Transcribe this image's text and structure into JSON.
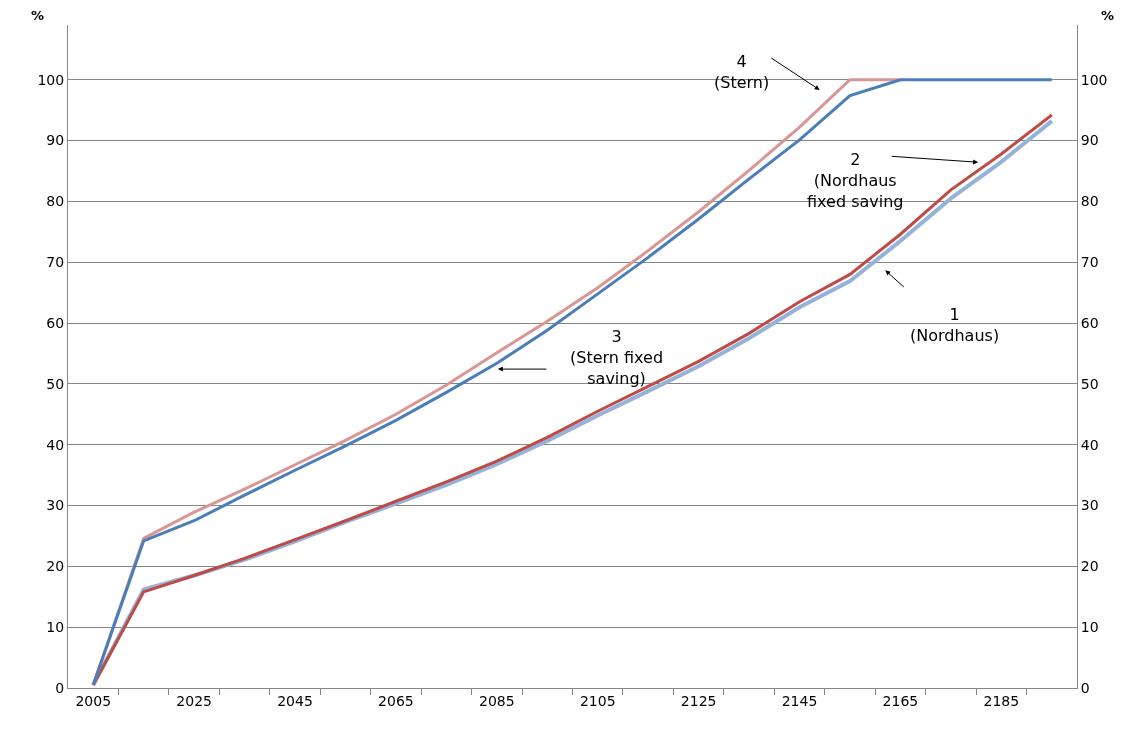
{
  "chart_data": {
    "type": "line",
    "categories": [
      "2005",
      null,
      "2025",
      null,
      "2045",
      null,
      "2065",
      null,
      "2085",
      null,
      "2105",
      null,
      "2125",
      null,
      "2145",
      null,
      "2165",
      null,
      "2185",
      null
    ],
    "series": [
      {
        "color": "#95b3d7",
        "values": [
          0.5,
          16.2,
          18.5,
          21.1,
          24.1,
          27.3,
          30.3,
          33.4,
          36.8,
          40.6,
          44.8,
          48.8,
          52.9,
          57.5,
          62.6,
          66.9,
          73.5,
          80.5,
          86.5,
          93.2
        ]
      },
      {
        "color": "#be4b48",
        "values": [
          0.5,
          15.8,
          18.5,
          21.3,
          24.4,
          27.5,
          30.7,
          33.9,
          37.3,
          41.2,
          45.5,
          49.6,
          53.7,
          58.3,
          63.5,
          68.0,
          74.6,
          81.9,
          87.8,
          94.2
        ]
      },
      {
        "color": "#d99694",
        "values": [
          0.5,
          24.6,
          28.9,
          32.7,
          36.7,
          40.7,
          45.0,
          49.8,
          55.1,
          60.3,
          65.8,
          71.9,
          78.3,
          85.1,
          92.2,
          100,
          100,
          null,
          null,
          null
        ]
      },
      {
        "color": "#4a7ebb",
        "values": [
          0.5,
          24.2,
          27.5,
          31.7,
          35.8,
          39.8,
          44.0,
          48.6,
          53.4,
          58.8,
          64.8,
          70.8,
          77.1,
          83.7,
          90.1,
          97.4,
          100,
          100,
          100,
          100
        ]
      }
    ],
    "ylabel": "%",
    "y2label": "%",
    "ylim": [
      0,
      109
    ],
    "yticks": [
      0,
      10,
      20,
      30,
      40,
      50,
      60,
      70,
      80,
      90,
      100
    ],
    "y2lim": [
      0,
      109
    ],
    "y2ticks": [
      0,
      10,
      20,
      30,
      40,
      50,
      60,
      70,
      80,
      90,
      100
    ],
    "annotations": [
      "4\n(Stern)",
      "2\n(Nordhaus\nfixed saving",
      "3\n(Stern fixed\nsaving)",
      "1\n(Nordhaus)"
    ],
    "grid": "y",
    "marker": "none",
    "line_style": "solid"
  }
}
